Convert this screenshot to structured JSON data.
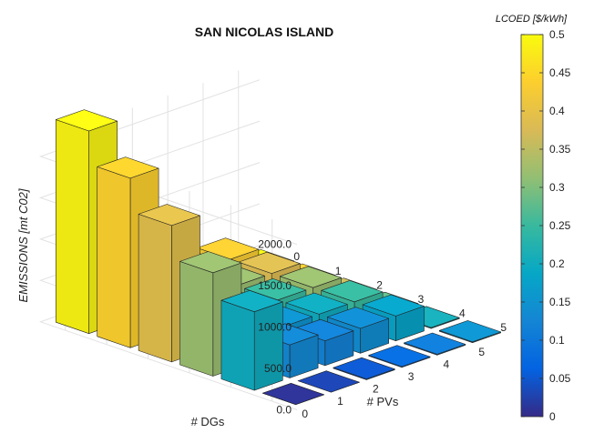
{
  "chart_data": {
    "type": "bar3d",
    "title": "SAN NICOLAS ISLAND",
    "xlabel": "# DGs",
    "ylabel": "# PVs",
    "zlabel": "EMISSIONS [mt C02]",
    "dg_ticks": [
      "0",
      "1",
      "2",
      "3",
      "4",
      "5"
    ],
    "pv_ticks": [
      "0",
      "1",
      "2",
      "3",
      "4",
      "5"
    ],
    "z_ticks": [
      "0.0",
      "500.0",
      "1000.0",
      "1500.0",
      "2000.0"
    ],
    "zlim": [
      0,
      2200
    ],
    "colorbar": {
      "title": "LCOED [$/kWh]",
      "ticks": [
        "0",
        "0.05",
        "0.1",
        "0.15",
        "0.2",
        "0.25",
        "0.3",
        "0.35",
        "0.4",
        "0.45",
        "0.5"
      ],
      "range": [
        0,
        0.5
      ]
    },
    "emissions": [
      [
        2450,
        2050,
        1650,
        1250,
        950,
        0
      ],
      [
        950,
        800,
        650,
        500,
        400,
        0
      ],
      [
        300,
        300,
        300,
        300,
        300,
        10
      ],
      [
        300,
        300,
        300,
        300,
        300,
        10
      ],
      [
        300,
        300,
        300,
        300,
        300,
        10
      ],
      [
        10,
        10,
        10,
        10,
        10,
        10
      ]
    ],
    "lcoed": [
      [
        0.49,
        0.44,
        0.39,
        0.32,
        0.2,
        0.01
      ],
      [
        0.27,
        0.24,
        0.21,
        0.16,
        0.13,
        0.03
      ],
      [
        0.32,
        0.25,
        0.2,
        0.15,
        0.12,
        0.05
      ],
      [
        0.38,
        0.32,
        0.25,
        0.2,
        0.14,
        0.08
      ],
      [
        0.43,
        0.38,
        0.32,
        0.25,
        0.18,
        0.11
      ],
      [
        0.49,
        0.43,
        0.36,
        0.28,
        0.21,
        0.15
      ]
    ]
  }
}
